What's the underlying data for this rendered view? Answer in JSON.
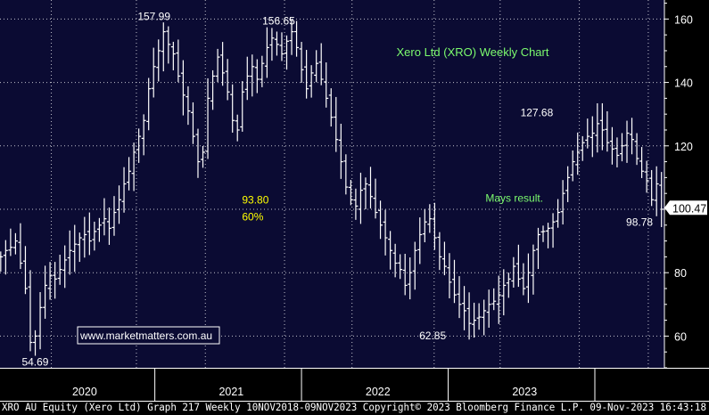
{
  "chart_data": {
    "type": "ohlc",
    "title": "Xero Ltd (XRO) Weekly Chart",
    "title_color": "#7CFC6E",
    "background_color": "#0B0B33",
    "bar_color": "#FFFFFF",
    "grid": true,
    "grid_style": "dotted",
    "ylim": [
      50,
      166
    ],
    "yticks": [
      60,
      80,
      100,
      120,
      140,
      160
    ],
    "y_axis_position": "right",
    "xlim": [
      2019.42,
      2023.95
    ],
    "year_labels": [
      {
        "label": "2020",
        "at": 2020.0
      },
      {
        "label": "2021",
        "at": 2021.0
      },
      {
        "label": "2022",
        "at": 2022.0
      },
      {
        "label": "2023",
        "at": 2023.0
      }
    ],
    "year_dividers": [
      2020.5,
      2021.5,
      2022.5,
      2023.5
    ],
    "last_price": {
      "value": 100.47,
      "label": "100.47"
    },
    "annotations": [
      {
        "text": "157.99",
        "x": 2020.47,
        "y": 157.99,
        "color": "#FFFFFF",
        "anchor": "middle",
        "pos": "above"
      },
      {
        "text": "156.65",
        "x": 2021.32,
        "y": 156.65,
        "color": "#FFFFFF",
        "anchor": "middle",
        "pos": "above"
      },
      {
        "text": "54.69",
        "x": 2019.66,
        "y": 54.69,
        "color": "#FFFFFF",
        "anchor": "middle",
        "pos": "below"
      },
      {
        "text": "62.85",
        "x": 2022.37,
        "y": 62.85,
        "color": "#FFFFFF",
        "anchor": "middle",
        "pos": "below"
      },
      {
        "text": "127.68",
        "x": 2023.08,
        "y": 127.68,
        "color": "#FFFFFF",
        "anchor": "middle",
        "pos": "above"
      },
      {
        "text": "98.78",
        "x": 2023.78,
        "y": 98.78,
        "color": "#FFFFFF",
        "anchor": "middle",
        "pos": "below"
      },
      {
        "text": "93.80",
        "x": 2021.07,
        "y": 103,
        "color": "#FFFF00",
        "anchor": "start",
        "pos": "at"
      },
      {
        "text": "60%",
        "x": 2021.07,
        "y": 97.6,
        "color": "#FFFF00",
        "anchor": "start",
        "pos": "at"
      },
      {
        "text": "Mays result.",
        "x": 2022.73,
        "y": 103.5,
        "color": "#7CFC6E",
        "anchor": "start",
        "pos": "at"
      }
    ],
    "watermark": "www.marketmatters.com.au",
    "footer": "XRO AU Equity (Xero Ltd) Graph 217  Weekly 10NOV2018-09NOV2023 Copyright© 2023 Bloomberg Finance L.P. 09-Nov-2023 16:43:18",
    "weekly_closes": [
      85,
      87,
      88,
      90,
      83,
      75,
      58,
      60,
      69,
      76,
      79,
      78,
      81,
      84,
      87,
      89,
      91,
      92,
      90,
      93,
      95,
      97,
      94,
      99,
      103,
      108,
      112,
      118,
      123,
      128,
      138,
      145,
      150,
      156,
      152,
      149,
      142,
      136,
      131,
      123,
      115,
      118,
      135,
      142,
      148,
      143,
      137,
      128,
      125,
      137,
      142,
      145,
      141,
      146,
      151,
      154,
      152,
      149,
      153,
      156,
      151,
      144,
      138,
      143,
      146,
      141,
      135,
      129,
      122,
      115,
      107,
      103,
      101,
      106,
      108,
      104,
      99,
      95,
      91,
      87,
      83,
      81,
      76,
      80,
      87,
      92,
      96,
      97,
      91,
      85,
      82,
      77,
      73,
      70,
      68,
      64,
      65,
      66,
      68,
      70,
      71,
      73,
      76,
      78,
      82,
      78,
      75,
      80,
      87,
      92,
      93,
      94,
      96,
      99,
      105,
      110,
      115,
      118,
      121,
      123,
      124,
      127,
      125,
      121,
      119,
      117,
      120,
      124,
      122,
      116,
      112,
      109,
      103,
      108,
      100
    ]
  }
}
